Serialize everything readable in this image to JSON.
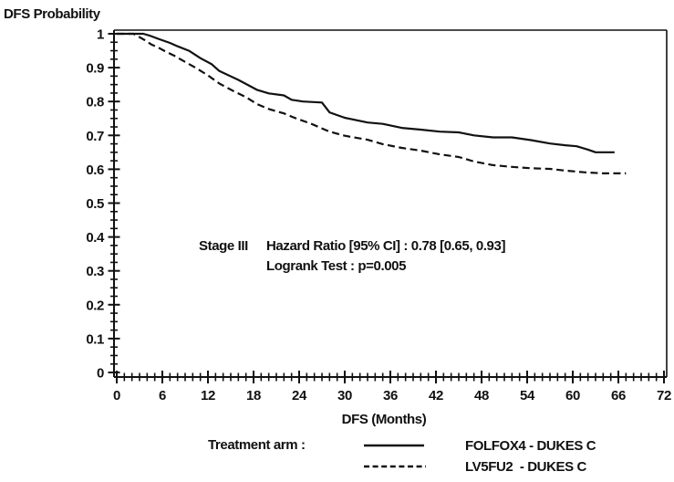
{
  "title": "DFS Probability",
  "annotation": {
    "stage": "Stage III",
    "hazard_ratio": "Hazard Ratio [95% CI] : 0.78 [0.65, 0.93]",
    "logrank": "Logrank Test : p=0.005"
  },
  "legend": {
    "label": "Treatment arm :",
    "items": [
      {
        "name": "FOLFOX4 - DUKES C",
        "display": "FOLFOX4 - DUKES C",
        "style": "solid"
      },
      {
        "name": "LV5FU2 - DUKES C",
        "display": "LV5FU2  - DUKES C",
        "style": "dashed"
      }
    ]
  },
  "colors": {
    "line": "#111111",
    "text": "#111111",
    "background": "#ffffff"
  },
  "chart_data": {
    "type": "line",
    "subtype": "kaplan-meier",
    "title": "",
    "xlabel": "DFS (Months)",
    "ylabel": "DFS Probability",
    "xlim": [
      0,
      72
    ],
    "ylim": [
      0,
      1
    ],
    "grid": false,
    "legend_position": "bottom",
    "x_ticks": [
      0,
      6,
      12,
      18,
      24,
      30,
      36,
      42,
      48,
      54,
      60,
      66,
      72
    ],
    "x_minor_step": 1,
    "y_ticks": [
      {
        "value": 0,
        "label": "0"
      },
      {
        "value": 0.1,
        "label": "0.1"
      },
      {
        "value": 0.2,
        "label": "0.2"
      },
      {
        "value": 0.3,
        "label": "0.3"
      },
      {
        "value": 0.4,
        "label": "0.4"
      },
      {
        "value": 0.5,
        "label": "0.5"
      },
      {
        "value": 0.6,
        "label": "0.6"
      },
      {
        "value": 0.7,
        "label": "0.7"
      },
      {
        "value": 0.8,
        "label": "0.8"
      },
      {
        "value": 0.9,
        "label": "0.9"
      },
      {
        "value": 1,
        "label": "1"
      }
    ],
    "y_minor_step": 0.025,
    "series": [
      {
        "name": "FOLFOX4 - DUKES C",
        "line": "solid",
        "points": [
          [
            0,
            1.0
          ],
          [
            3.5,
            1.0
          ],
          [
            4.3,
            0.995
          ],
          [
            5.5,
            0.985
          ],
          [
            7,
            0.973
          ],
          [
            8,
            0.963
          ],
          [
            9.5,
            0.95
          ],
          [
            11,
            0.928
          ],
          [
            12.5,
            0.91
          ],
          [
            13.5,
            0.89
          ],
          [
            16,
            0.864
          ],
          [
            18.5,
            0.834
          ],
          [
            20,
            0.824
          ],
          [
            22,
            0.818
          ],
          [
            23,
            0.805
          ],
          [
            24.5,
            0.8
          ],
          [
            27,
            0.797
          ],
          [
            28,
            0.768
          ],
          [
            30,
            0.752
          ],
          [
            33,
            0.738
          ],
          [
            35,
            0.734
          ],
          [
            37.5,
            0.722
          ],
          [
            40,
            0.717
          ],
          [
            42.5,
            0.711
          ],
          [
            45,
            0.709
          ],
          [
            47,
            0.7
          ],
          [
            49.5,
            0.694
          ],
          [
            52,
            0.694
          ],
          [
            54.5,
            0.686
          ],
          [
            57,
            0.676
          ],
          [
            59,
            0.671
          ],
          [
            60.5,
            0.668
          ],
          [
            62,
            0.658
          ],
          [
            63,
            0.65
          ],
          [
            65.5,
            0.65
          ]
        ]
      },
      {
        "name": "LV5FU2 - DUKES C",
        "line": "dashed",
        "points": [
          [
            0,
            1.0
          ],
          [
            2.2,
            1.0
          ],
          [
            3,
            0.99
          ],
          [
            3.7,
            0.981
          ],
          [
            4.6,
            0.968
          ],
          [
            5.4,
            0.96
          ],
          [
            6.3,
            0.949
          ],
          [
            7.5,
            0.936
          ],
          [
            9,
            0.917
          ],
          [
            10.5,
            0.898
          ],
          [
            12,
            0.877
          ],
          [
            13.5,
            0.853
          ],
          [
            15.5,
            0.829
          ],
          [
            17,
            0.813
          ],
          [
            18.5,
            0.792
          ],
          [
            20,
            0.778
          ],
          [
            22,
            0.765
          ],
          [
            23.5,
            0.751
          ],
          [
            25.5,
            0.735
          ],
          [
            28,
            0.711
          ],
          [
            30,
            0.699
          ],
          [
            33,
            0.687
          ],
          [
            35,
            0.674
          ],
          [
            37.5,
            0.663
          ],
          [
            40,
            0.655
          ],
          [
            42.5,
            0.644
          ],
          [
            45,
            0.636
          ],
          [
            47,
            0.623
          ],
          [
            49.5,
            0.612
          ],
          [
            52,
            0.607
          ],
          [
            54.5,
            0.603
          ],
          [
            57,
            0.601
          ],
          [
            59,
            0.596
          ],
          [
            61.5,
            0.591
          ],
          [
            64,
            0.588
          ],
          [
            67,
            0.588
          ]
        ]
      }
    ]
  }
}
